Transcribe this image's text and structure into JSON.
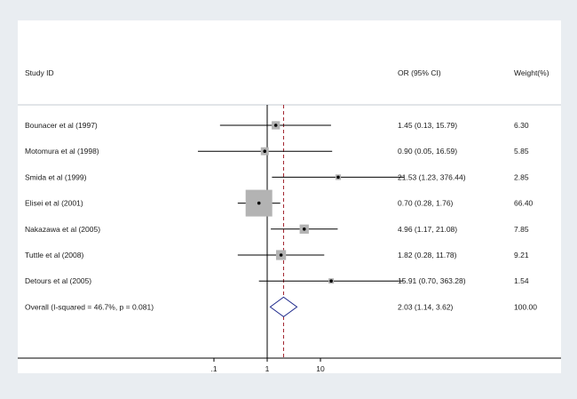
{
  "chart_data": {
    "type": "forest",
    "headers": {
      "study": "Study ID",
      "effect": "OR (95% CI)",
      "weight": "Weight(%)"
    },
    "x_axis": {
      "scale": "log",
      "ticks": [
        ".1",
        "1",
        "10"
      ],
      "tick_values": [
        0.1,
        1,
        10
      ],
      "xlim": [
        0.0026,
        1180
      ]
    },
    "reference_line": 1,
    "pooled_line": 2.03,
    "studies": [
      {
        "label": "Bounacer et al (1997)",
        "or": 1.45,
        "lo": 0.13,
        "hi": 15.79,
        "ci_text": "1.45 (0.13, 15.79)",
        "weight": 6.3,
        "weight_text": "6.30"
      },
      {
        "label": "Motomura et al (1998)",
        "or": 0.9,
        "lo": 0.05,
        "hi": 16.59,
        "ci_text": "0.90 (0.05, 16.59)",
        "weight": 5.85,
        "weight_text": "5.85"
      },
      {
        "label": "Smida et al (1999)",
        "or": 21.53,
        "lo": 1.23,
        "hi": 376.44,
        "ci_text": "21.53 (1.23, 376.44)",
        "weight": 2.85,
        "weight_text": "2.85"
      },
      {
        "label": "Elisei et al (2001)",
        "or": 0.7,
        "lo": 0.28,
        "hi": 1.76,
        "ci_text": "0.70 (0.28, 1.76)",
        "weight": 66.4,
        "weight_text": "66.40"
      },
      {
        "label": "Nakazawa et al (2005)",
        "or": 4.96,
        "lo": 1.17,
        "hi": 21.08,
        "ci_text": "4.96 (1.17, 21.08)",
        "weight": 7.85,
        "weight_text": "7.85"
      },
      {
        "label": "Tuttle et al (2008)",
        "or": 1.82,
        "lo": 0.28,
        "hi": 11.78,
        "ci_text": "1.82 (0.28, 11.78)",
        "weight": 9.21,
        "weight_text": "9.21"
      },
      {
        "label": "Detours et al (2005)",
        "or": 15.91,
        "lo": 0.7,
        "hi": 363.28,
        "ci_text": "15.91 (0.70, 363.28)",
        "weight": 1.54,
        "weight_text": "1.54"
      }
    ],
    "overall": {
      "label": "Overall  (I-squared = 46.7%, p = 0.081)",
      "or": 2.03,
      "lo": 1.14,
      "hi": 3.62,
      "ci_text": "2.03 (1.14, 3.62)",
      "weight_text": "100.00"
    },
    "colors": {
      "background": "#e9edf1",
      "panel": "#ffffff",
      "box": "#b3b3b3",
      "line": "#000000",
      "pooled_line": "#a0202a",
      "diamond": "#1f2a8c",
      "separator": "#c6cbd0"
    }
  }
}
